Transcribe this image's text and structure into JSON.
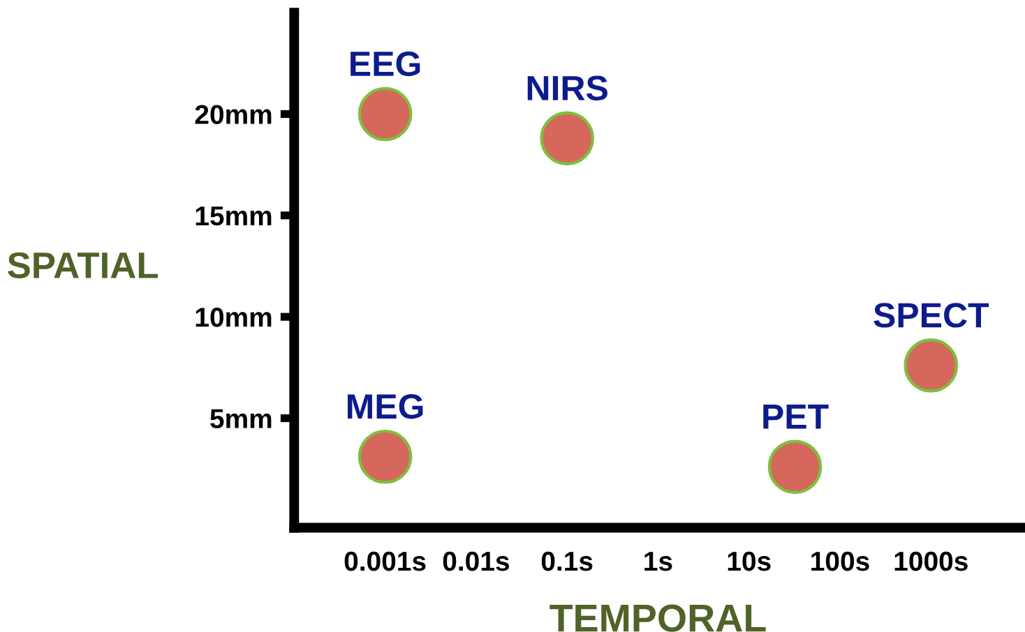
{
  "chart_data": {
    "type": "scatter",
    "xlabel": "TEMPORAL",
    "ylabel": "SPATIAL",
    "log": "x",
    "x": [
      0.001,
      0.1,
      0.001,
      32,
      1000
    ],
    "values": [
      20,
      18.8,
      3.1,
      2.6,
      7.6
    ],
    "color": "#d5675c",
    "marker": "circle",
    "grid": false,
    "legend": false,
    "xlim": [
      0.0001,
      10000
    ],
    "ylim": [
      -0.4,
      25
    ],
    "xticks": [
      {
        "value": 0.001,
        "label": "0.001s"
      },
      {
        "value": 0.01,
        "label": "0.01s"
      },
      {
        "value": 0.1,
        "label": "0.1s"
      },
      {
        "value": 1,
        "label": "1s"
      },
      {
        "value": 10,
        "label": "10s"
      },
      {
        "value": 100,
        "label": "100s"
      },
      {
        "value": 1000,
        "label": "1000s"
      }
    ],
    "yticks": [
      {
        "value": 5,
        "label": "5mm"
      },
      {
        "value": 10,
        "label": "10mm"
      },
      {
        "value": 15,
        "label": "15mm"
      },
      {
        "value": 20,
        "label": "20mm"
      }
    ],
    "annotations": [
      {
        "text": "EEG",
        "x": 0.001,
        "y": 20
      },
      {
        "text": "NIRS",
        "x": 0.1,
        "y": 18.8
      },
      {
        "text": "MEG",
        "x": 0.001,
        "y": 3.1
      },
      {
        "text": "PET",
        "x": 32,
        "y": 2.6
      },
      {
        "text": "SPECT",
        "x": 1000,
        "y": 7.6
      }
    ]
  }
}
